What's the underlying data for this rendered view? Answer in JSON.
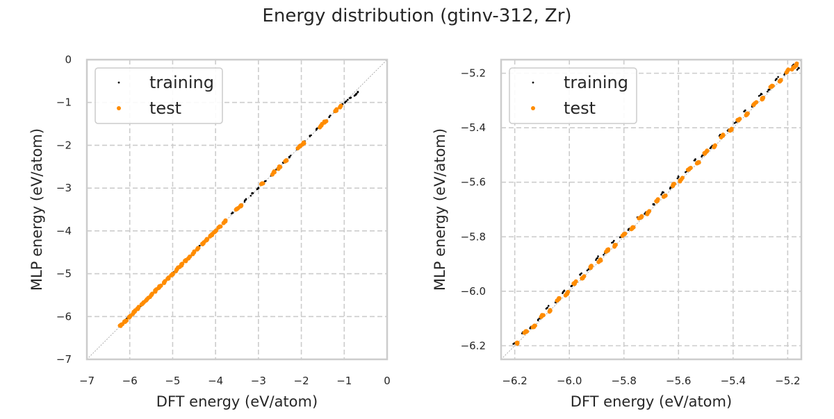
{
  "figure": {
    "title": "Energy distribution (gtinv-312, Zr)"
  },
  "chart_data": [
    {
      "type": "scatter",
      "xlabel": "DFT energy (eV/atom)",
      "ylabel": "MLP energy (eV/atom)",
      "xlim": [
        -7,
        0
      ],
      "ylim": [
        -7,
        0
      ],
      "xticks": [
        -7,
        -6,
        -5,
        -4,
        -3,
        -2,
        -1,
        0
      ],
      "yticks": [
        -7,
        -6,
        -5,
        -4,
        -3,
        -2,
        -1,
        0
      ],
      "xtick_labels": [
        "−7",
        "−6",
        "−5",
        "−4",
        "−3",
        "−2",
        "−1",
        "0"
      ],
      "ytick_labels": [
        "−7",
        "−6",
        "−5",
        "−4",
        "−3",
        "−2",
        "−1",
        "0"
      ],
      "grid": true,
      "diagonal": true,
      "legend": "top-left",
      "series": [
        {
          "name": "training",
          "color": "#000000",
          "x": [
            -6.18,
            -6.05,
            -5.9,
            -5.75,
            -5.6,
            -5.45,
            -5.3,
            -5.15,
            -5.0,
            -4.85,
            -4.7,
            -4.55,
            -4.4,
            -4.2,
            -4.0,
            -3.8,
            -3.6,
            -3.45,
            -3.3,
            -3.15,
            -3.0,
            -2.85,
            -2.7,
            -2.55,
            -2.4,
            -2.25,
            -2.1,
            -1.95,
            -1.8,
            -1.65,
            -1.5,
            -1.35,
            -1.2,
            -1.05,
            -0.95,
            -0.85,
            -0.75,
            -0.68
          ],
          "y": [
            -6.17,
            -6.04,
            -5.91,
            -5.76,
            -5.6,
            -5.44,
            -5.31,
            -5.15,
            -4.99,
            -4.84,
            -4.71,
            -4.55,
            -4.39,
            -4.21,
            -3.99,
            -3.79,
            -3.58,
            -3.43,
            -3.28,
            -3.13,
            -2.99,
            -2.84,
            -2.69,
            -2.54,
            -2.39,
            -2.24,
            -2.09,
            -1.94,
            -1.79,
            -1.64,
            -1.49,
            -1.34,
            -1.19,
            -1.04,
            -0.97,
            -0.89,
            -0.83,
            -0.75
          ]
        },
        {
          "name": "test",
          "color": "#ff8c00",
          "x": [
            -6.2,
            -6.1,
            -6.0,
            -5.9,
            -5.8,
            -5.7,
            -5.6,
            -5.5,
            -5.4,
            -5.3,
            -5.2,
            -5.1,
            -5.0,
            -4.9,
            -4.8,
            -4.7,
            -4.6,
            -4.5,
            -4.4,
            -4.3,
            -4.2,
            -4.1,
            -4.0,
            -3.9,
            -3.8,
            -3.5,
            -3.4,
            -2.9,
            -2.65,
            -2.5,
            -2.35,
            -2.05,
            -1.95,
            -1.55,
            -1.45,
            -1.2,
            -1.1
          ],
          "y": [
            -6.19,
            -6.1,
            -6.0,
            -5.9,
            -5.8,
            -5.7,
            -5.6,
            -5.5,
            -5.4,
            -5.3,
            -5.2,
            -5.1,
            -5.0,
            -4.9,
            -4.8,
            -4.7,
            -4.6,
            -4.5,
            -4.4,
            -4.3,
            -4.2,
            -4.1,
            -4.0,
            -3.9,
            -3.8,
            -3.49,
            -3.4,
            -2.89,
            -2.64,
            -2.5,
            -2.35,
            -2.04,
            -1.95,
            -1.55,
            -1.45,
            -1.2,
            -1.11
          ]
        }
      ]
    },
    {
      "type": "scatter",
      "xlabel": "DFT energy (eV/atom)",
      "ylabel": "MLP energy (eV/atom)",
      "xlim": [
        -6.25,
        -5.15
      ],
      "ylim": [
        -6.25,
        -5.15
      ],
      "xticks": [
        -6.2,
        -6.0,
        -5.8,
        -5.6,
        -5.4,
        -5.2
      ],
      "yticks": [
        -6.2,
        -6.0,
        -5.8,
        -5.6,
        -5.4,
        -5.2
      ],
      "xtick_labels": [
        "−6.2",
        "−6.0",
        "−5.8",
        "−5.6",
        "−5.4",
        "−5.2"
      ],
      "ytick_labels": [
        "−6.2",
        "−6.0",
        "−5.8",
        "−5.6",
        "−5.4",
        "−5.2"
      ],
      "grid": true,
      "diagonal": true,
      "legend": "top-left",
      "series": [
        {
          "name": "training",
          "color": "#000000",
          "x": [
            -6.2,
            -6.17,
            -6.14,
            -6.11,
            -6.08,
            -6.05,
            -6.02,
            -5.99,
            -5.96,
            -5.93,
            -5.9,
            -5.87,
            -5.84,
            -5.81,
            -5.78,
            -5.75,
            -5.72,
            -5.69,
            -5.66,
            -5.63,
            -5.6,
            -5.57,
            -5.54,
            -5.51,
            -5.48,
            -5.45,
            -5.42,
            -5.39,
            -5.36,
            -5.33,
            -5.3,
            -5.27,
            -5.24,
            -5.21,
            -5.18,
            -5.16
          ],
          "y": [
            -6.19,
            -6.15,
            -6.13,
            -6.1,
            -6.06,
            -6.04,
            -6.0,
            -5.98,
            -5.94,
            -5.92,
            -5.88,
            -5.86,
            -5.82,
            -5.8,
            -5.77,
            -5.73,
            -5.71,
            -5.68,
            -5.64,
            -5.62,
            -5.58,
            -5.56,
            -5.52,
            -5.5,
            -5.47,
            -5.43,
            -5.41,
            -5.38,
            -5.34,
            -5.32,
            -5.28,
            -5.26,
            -5.22,
            -5.2,
            -5.17,
            -5.18
          ]
        },
        {
          "name": "test",
          "color": "#ff8c00",
          "x": [
            -6.19,
            -6.16,
            -6.13,
            -6.1,
            -6.07,
            -6.04,
            -6.01,
            -5.98,
            -5.95,
            -5.92,
            -5.89,
            -5.86,
            -5.83,
            -5.8,
            -5.77,
            -5.74,
            -5.71,
            -5.68,
            -5.65,
            -5.62,
            -5.59,
            -5.56,
            -5.53,
            -5.5,
            -5.47,
            -5.44,
            -5.41,
            -5.38,
            -5.35,
            -5.32,
            -5.29,
            -5.26,
            -5.23,
            -5.2,
            -5.18,
            -5.17
          ],
          "y": [
            -6.19,
            -6.15,
            -6.13,
            -6.09,
            -6.07,
            -6.03,
            -6.01,
            -5.97,
            -5.95,
            -5.91,
            -5.89,
            -5.85,
            -5.83,
            -5.79,
            -5.77,
            -5.73,
            -5.71,
            -5.67,
            -5.65,
            -5.61,
            -5.59,
            -5.55,
            -5.53,
            -5.49,
            -5.47,
            -5.43,
            -5.41,
            -5.37,
            -5.35,
            -5.31,
            -5.29,
            -5.25,
            -5.23,
            -5.19,
            -5.18,
            -5.17
          ]
        }
      ]
    }
  ]
}
